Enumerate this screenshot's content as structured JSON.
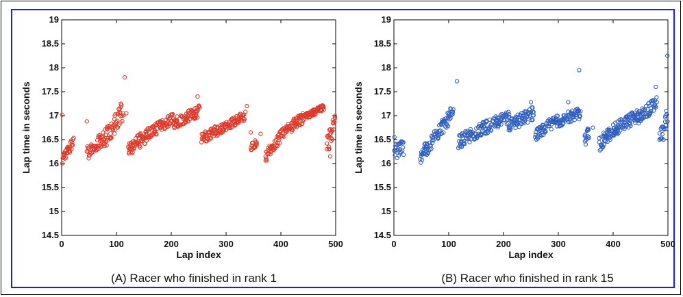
{
  "chart_data": [
    {
      "type": "scatter",
      "caption": "(A) Racer who finished in rank 1",
      "xlabel": "Lap index",
      "ylabel": "Lap time in seconds",
      "xlim": [
        0,
        500
      ],
      "ylim": [
        14.5,
        19
      ],
      "xticks": [
        "0",
        "100",
        "200",
        "300",
        "400",
        "500"
      ],
      "yticks": [
        "14.5",
        "15",
        "15.5",
        "16",
        "16.5",
        "17",
        "17.5",
        "18",
        "18.5",
        "19"
      ],
      "grid": false,
      "marker_color": "#e03a2a",
      "segments": [
        {
          "x0": 1,
          "x1": 22,
          "y0": 16.05,
          "y1": 16.5,
          "spread": 0.12
        },
        {
          "x0": 46,
          "x1": 78,
          "y0": 16.2,
          "y1": 16.55,
          "spread": 0.15
        },
        {
          "x0": 78,
          "x1": 113,
          "y0": 16.5,
          "y1": 17.1,
          "spread": 0.2
        },
        {
          "x0": 122,
          "x1": 162,
          "y0": 16.3,
          "y1": 16.65,
          "spread": 0.15
        },
        {
          "x0": 162,
          "x1": 205,
          "y0": 16.65,
          "y1": 16.95,
          "spread": 0.12
        },
        {
          "x0": 205,
          "x1": 252,
          "y0": 16.85,
          "y1": 17.1,
          "spread": 0.12
        },
        {
          "x0": 255,
          "x1": 280,
          "y0": 16.5,
          "y1": 16.7,
          "spread": 0.12
        },
        {
          "x0": 280,
          "x1": 335,
          "y0": 16.65,
          "y1": 17.0,
          "spread": 0.1
        },
        {
          "x0": 345,
          "x1": 356,
          "y0": 16.35,
          "y1": 16.45,
          "spread": 0.08
        },
        {
          "x0": 372,
          "x1": 398,
          "y0": 16.15,
          "y1": 16.55,
          "spread": 0.12
        },
        {
          "x0": 398,
          "x1": 440,
          "y0": 16.6,
          "y1": 16.95,
          "spread": 0.12
        },
        {
          "x0": 440,
          "x1": 478,
          "y0": 16.95,
          "y1": 17.18,
          "spread": 0.06
        },
        {
          "x0": 484,
          "x1": 499,
          "y0": 16.4,
          "y1": 16.85,
          "spread": 0.2
        }
      ],
      "outliers": [
        {
          "x": 1,
          "y": 17.02
        },
        {
          "x": 46,
          "y": 16.88
        },
        {
          "x": 70,
          "y": 16.6
        },
        {
          "x": 108,
          "y": 17.25
        },
        {
          "x": 115,
          "y": 17.8
        },
        {
          "x": 118,
          "y": 17.05
        },
        {
          "x": 248,
          "y": 17.4
        },
        {
          "x": 338,
          "y": 17.2
        },
        {
          "x": 345,
          "y": 16.65
        },
        {
          "x": 363,
          "y": 16.62
        },
        {
          "x": 488,
          "y": 16.3
        },
        {
          "x": 490,
          "y": 16.15
        },
        {
          "x": 499,
          "y": 16.95
        }
      ]
    },
    {
      "type": "scatter",
      "caption": "(B) Racer who finished in rank 15",
      "xlabel": "Lap index",
      "ylabel": "Lap time in seconds",
      "xlim": [
        0,
        500
      ],
      "ylim": [
        14.5,
        19
      ],
      "xticks": [
        "0",
        "100",
        "200",
        "300",
        "400",
        "500"
      ],
      "yticks": [
        "14.5",
        "15",
        "15.5",
        "16",
        "16.5",
        "17",
        "17.5",
        "18",
        "18.5",
        "19"
      ],
      "grid": false,
      "marker_color": "#2f5fc0",
      "segments": [
        {
          "x0": 1,
          "x1": 18,
          "y0": 16.25,
          "y1": 16.35,
          "spread": 0.18
        },
        {
          "x0": 48,
          "x1": 70,
          "y0": 16.15,
          "y1": 16.45,
          "spread": 0.15
        },
        {
          "x0": 70,
          "x1": 108,
          "y0": 16.5,
          "y1": 17.05,
          "spread": 0.15
        },
        {
          "x0": 118,
          "x1": 165,
          "y0": 16.45,
          "y1": 16.75,
          "spread": 0.14
        },
        {
          "x0": 165,
          "x1": 210,
          "y0": 16.75,
          "y1": 16.95,
          "spread": 0.14
        },
        {
          "x0": 210,
          "x1": 255,
          "y0": 16.8,
          "y1": 17.05,
          "spread": 0.14
        },
        {
          "x0": 258,
          "x1": 290,
          "y0": 16.6,
          "y1": 16.85,
          "spread": 0.12
        },
        {
          "x0": 290,
          "x1": 340,
          "y0": 16.85,
          "y1": 17.05,
          "spread": 0.12
        },
        {
          "x0": 348,
          "x1": 356,
          "y0": 16.55,
          "y1": 16.65,
          "spread": 0.12
        },
        {
          "x0": 375,
          "x1": 400,
          "y0": 16.4,
          "y1": 16.7,
          "spread": 0.15
        },
        {
          "x0": 400,
          "x1": 445,
          "y0": 16.7,
          "y1": 17.0,
          "spread": 0.14
        },
        {
          "x0": 445,
          "x1": 480,
          "y0": 16.95,
          "y1": 17.25,
          "spread": 0.14
        },
        {
          "x0": 485,
          "x1": 499,
          "y0": 16.6,
          "y1": 16.9,
          "spread": 0.18
        }
      ],
      "outliers": [
        {
          "x": 1,
          "y": 16.55
        },
        {
          "x": 115,
          "y": 17.72
        },
        {
          "x": 103,
          "y": 17.15
        },
        {
          "x": 250,
          "y": 17.28
        },
        {
          "x": 318,
          "y": 17.28
        },
        {
          "x": 338,
          "y": 17.95
        },
        {
          "x": 350,
          "y": 16.4
        },
        {
          "x": 363,
          "y": 16.75
        },
        {
          "x": 478,
          "y": 17.6
        },
        {
          "x": 492,
          "y": 16.5
        },
        {
          "x": 499,
          "y": 18.25
        },
        {
          "x": 497,
          "y": 17.1
        }
      ]
    }
  ]
}
